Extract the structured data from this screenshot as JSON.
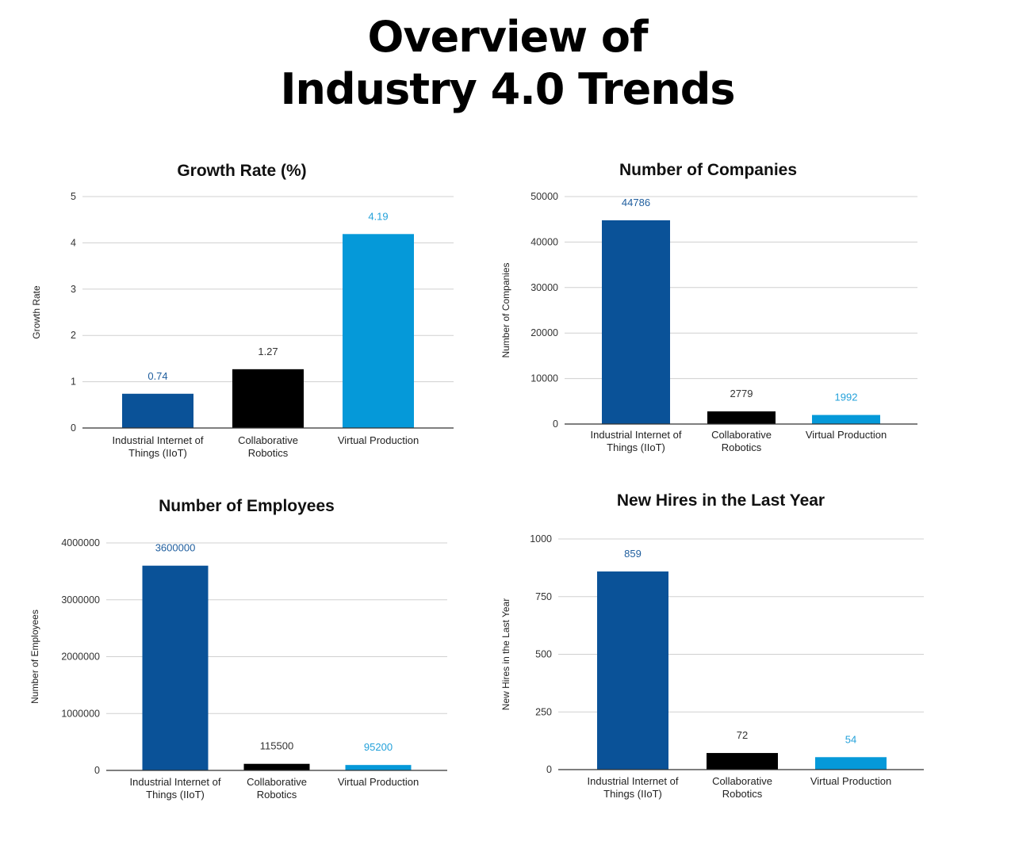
{
  "page": {
    "title_line1": "Overview of",
    "title_line2": "Industry 4.0 Trends"
  },
  "colors": {
    "iiot": "#0a5298",
    "robotics": "#000000",
    "virtual": "#0599d9",
    "label_iiot": "#1f5e9e",
    "label_robotics": "#333333",
    "label_virtual": "#23a1da",
    "grid": "#d0d0d0",
    "axis": "#333333"
  },
  "chart_data": [
    {
      "type": "bar",
      "title": "Growth Rate (%)",
      "xlabel": "",
      "ylabel": "Growth Rate",
      "categories": [
        [
          "Industrial Internet of",
          "Things (IIoT)"
        ],
        [
          "Collaborative",
          "Robotics"
        ],
        [
          "Virtual Production"
        ]
      ],
      "values": [
        0.74,
        1.27,
        4.19
      ],
      "value_labels": [
        "0.74",
        "1.27",
        "4.19"
      ],
      "ylim": [
        0,
        5
      ],
      "yticks": [
        0,
        1,
        2,
        3,
        4,
        5
      ],
      "ytick_labels": [
        "0",
        "1",
        "2",
        "3",
        "4",
        "5"
      ],
      "grid": true
    },
    {
      "type": "bar",
      "title": "Number of Companies",
      "xlabel": "",
      "ylabel": "Number of Companies",
      "categories": [
        [
          "Industrial Internet of",
          "Things (IIoT)"
        ],
        [
          "Collaborative",
          "Robotics"
        ],
        [
          "Virtual Production"
        ]
      ],
      "values": [
        44786,
        2779,
        1992
      ],
      "value_labels": [
        "44786",
        "2779",
        "1992"
      ],
      "ylim": [
        0,
        50000
      ],
      "yticks": [
        0,
        10000,
        20000,
        30000,
        40000,
        50000
      ],
      "ytick_labels": [
        "0",
        "10000",
        "20000",
        "30000",
        "40000",
        "50000"
      ],
      "grid": true
    },
    {
      "type": "bar",
      "title": "Number of Employees",
      "xlabel": "",
      "ylabel": "Number of Employees",
      "categories": [
        [
          "Industrial Internet of",
          "Things (IIoT)"
        ],
        [
          "Collaborative",
          "Robotics"
        ],
        [
          "Virtual Production"
        ]
      ],
      "values": [
        3600000,
        115500,
        95200
      ],
      "value_labels": [
        "3600000",
        "115500",
        "95200"
      ],
      "ylim": [
        0,
        4000000
      ],
      "yticks": [
        0,
        1000000,
        2000000,
        3000000,
        4000000
      ],
      "ytick_labels": [
        "0",
        "1000000",
        "2000000",
        "3000000",
        "4000000"
      ],
      "grid": true
    },
    {
      "type": "bar",
      "title": "New Hires in the Last Year",
      "xlabel": "",
      "ylabel": "New Hires in the Last Year",
      "categories": [
        [
          "Industrial Internet of",
          "Things (IIoT)"
        ],
        [
          "Collaborative",
          "Robotics"
        ],
        [
          "Virtual Production"
        ]
      ],
      "values": [
        859,
        72,
        54
      ],
      "value_labels": [
        "859",
        "72",
        "54"
      ],
      "ylim": [
        0,
        1000
      ],
      "yticks": [
        0,
        250,
        500,
        750,
        1000
      ],
      "ytick_labels": [
        "0",
        "250",
        "500",
        "750",
        "1000"
      ],
      "grid": true
    }
  ]
}
